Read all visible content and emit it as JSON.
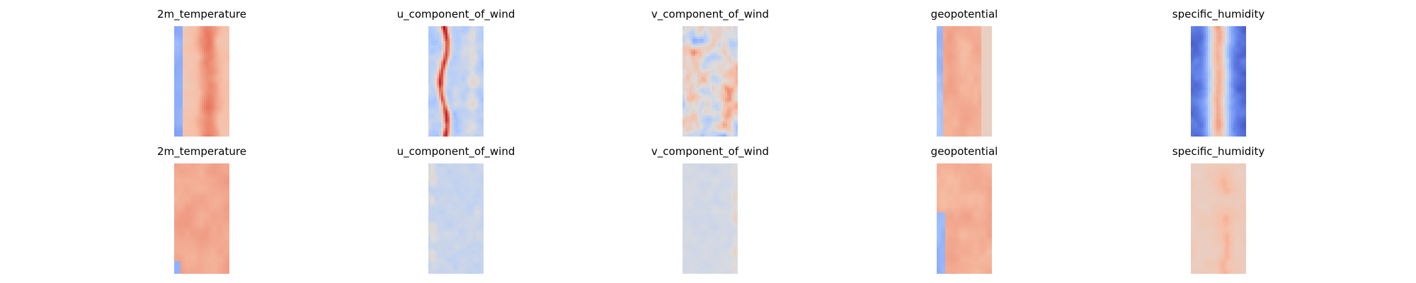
{
  "figure": {
    "background": "#ffffff",
    "colormap": "coolwarm",
    "colormap_stops": [
      "#3b4cc0",
      "#7396f5",
      "#b0cbfc",
      "#dddcdc",
      "#f6bfa6",
      "#e7745b",
      "#b40426"
    ]
  },
  "chart_data": [
    {
      "type": "heatmap",
      "row": 1,
      "title": "2m_temperature",
      "colormap": "coolwarm",
      "pattern": "left cool strip, warm center with vertical warm band",
      "axes": "off"
    },
    {
      "type": "heatmap",
      "row": 1,
      "title": "u_component_of_wind",
      "colormap": "coolwarm",
      "pattern": "light blue field with wavy warm vertical streaks",
      "axes": "off"
    },
    {
      "type": "heatmap",
      "row": 1,
      "title": "v_component_of_wind",
      "colormap": "coolwarm",
      "pattern": "mixed warm and cool turbulent patches",
      "axes": "off"
    },
    {
      "type": "heatmap",
      "row": 1,
      "title": "geopotential",
      "colormap": "coolwarm",
      "pattern": "left cool strip, warm center, pale right edge",
      "axes": "off"
    },
    {
      "type": "heatmap",
      "row": 1,
      "title": "specific_humidity",
      "colormap": "coolwarm",
      "pattern": "deep blue sides with narrow warm central band",
      "axes": "off"
    },
    {
      "type": "heatmap",
      "row": 2,
      "title": "2m_temperature",
      "colormap": "coolwarm",
      "pattern": "mostly warm with small cool edges",
      "axes": "off"
    },
    {
      "type": "heatmap",
      "row": 2,
      "title": "u_component_of_wind",
      "colormap": "coolwarm",
      "pattern": "near-neutral field with faint vertical warm/cool stripes",
      "axes": "off"
    },
    {
      "type": "heatmap",
      "row": 2,
      "title": "v_component_of_wind",
      "colormap": "coolwarm",
      "pattern": "near-neutral field with faint stripes near edges",
      "axes": "off"
    },
    {
      "type": "heatmap",
      "row": 2,
      "title": "geopotential",
      "colormap": "coolwarm",
      "pattern": "warm field with cool lower-left strip",
      "axes": "off"
    },
    {
      "type": "heatmap",
      "row": 2,
      "title": "specific_humidity",
      "colormap": "coolwarm",
      "pattern": "pale warm field with darker warm streaks at center",
      "axes": "off"
    }
  ]
}
